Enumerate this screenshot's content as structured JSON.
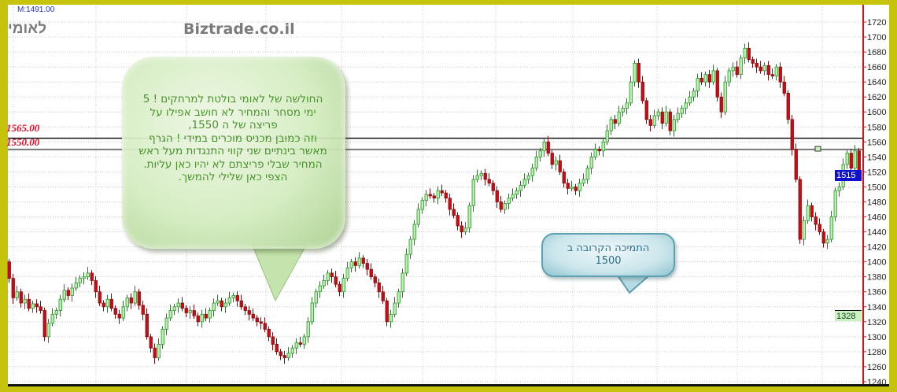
{
  "header": {
    "symbol_label": "לאומי",
    "site": "Biztrade.co.il",
    "m_value": "M:1491.00"
  },
  "levels": [
    {
      "value": 1565,
      "label": "1565.00",
      "color": "#000000"
    },
    {
      "value": 1550,
      "label": "1550.00",
      "color": "#777777"
    }
  ],
  "tags": {
    "last": "1515",
    "marker": "1328"
  },
  "annotations": {
    "main_lines": [
      "החולשה של לאומי בולטת למרחקים ! 5",
      "ימי מסחר והמחיר לא חושב אפילו על",
      "פריצה של ה 1550,",
      "וזה כמובן מכניס מוכרים במידי ! הגרף",
      "מאשר בינתיים שני קווי התנגדות מעל ראש",
      "המחיר שבלי פריצתם לא יהיו כאן עליות.",
      "הצפי כאן שלילי להמשך."
    ],
    "support_lines": [
      "התמיכה הקרובה ב",
      "1500"
    ]
  },
  "colors": {
    "up": "#2fc02f",
    "down": "#cc0a14",
    "frame": "#c6c30c",
    "axis": "#e01010"
  },
  "chart_data": {
    "type": "candlestick",
    "title": "",
    "ylim": [
      1240,
      1730
    ],
    "y_ticks": [
      1240,
      1260,
      1280,
      1300,
      1320,
      1340,
      1360,
      1380,
      1400,
      1420,
      1440,
      1460,
      1480,
      1500,
      1520,
      1540,
      1560,
      1580,
      1600,
      1620,
      1640,
      1660,
      1680,
      1700,
      1720
    ],
    "grid": true,
    "first_open": 1400,
    "close": [
      1378,
      1352,
      1360,
      1345,
      1350,
      1338,
      1344,
      1340,
      1335,
      1300,
      1318,
      1330,
      1335,
      1350,
      1362,
      1355,
      1365,
      1372,
      1378,
      1380,
      1385,
      1375,
      1360,
      1345,
      1340,
      1350,
      1338,
      1330,
      1325,
      1340,
      1352,
      1345,
      1360,
      1342,
      1330,
      1300,
      1285,
      1272,
      1290,
      1310,
      1325,
      1335,
      1340,
      1345,
      1338,
      1332,
      1335,
      1328,
      1320,
      1330,
      1325,
      1335,
      1345,
      1348,
      1340,
      1345,
      1352,
      1355,
      1348,
      1340,
      1335,
      1330,
      1325,
      1320,
      1318,
      1310,
      1300,
      1290,
      1280,
      1275,
      1272,
      1278,
      1285,
      1292,
      1290,
      1300,
      1320,
      1345,
      1360,
      1368,
      1375,
      1385,
      1380,
      1370,
      1360,
      1378,
      1392,
      1400,
      1395,
      1405,
      1398,
      1390,
      1380,
      1372,
      1360,
      1348,
      1320,
      1330,
      1345,
      1360,
      1385,
      1410,
      1430,
      1450,
      1470,
      1482,
      1490,
      1488,
      1485,
      1495,
      1492,
      1485,
      1470,
      1462,
      1448,
      1440,
      1445,
      1475,
      1510,
      1515,
      1518,
      1510,
      1505,
      1495,
      1480,
      1470,
      1478,
      1485,
      1490,
      1495,
      1502,
      1510,
      1515,
      1525,
      1540,
      1548,
      1560,
      1545,
      1530,
      1535,
      1520,
      1505,
      1498,
      1500,
      1495,
      1505,
      1510,
      1525,
      1540,
      1550,
      1548,
      1560,
      1575,
      1590,
      1585,
      1600,
      1605,
      1612,
      1640,
      1665,
      1640,
      1615,
      1590,
      1582,
      1595,
      1600,
      1585,
      1600,
      1575,
      1590,
      1598,
      1605,
      1612,
      1620,
      1628,
      1645,
      1640,
      1650,
      1640,
      1655,
      1620,
      1600,
      1640,
      1655,
      1660,
      1650,
      1672,
      1685,
      1670,
      1665,
      1660,
      1655,
      1662,
      1650,
      1648,
      1660,
      1640,
      1625,
      1590,
      1550,
      1510,
      1430,
      1455,
      1475,
      1460,
      1450,
      1440,
      1425,
      1430,
      1460,
      1495,
      1500,
      1530,
      1545,
      1525,
      1548,
      1515
    ]
  }
}
